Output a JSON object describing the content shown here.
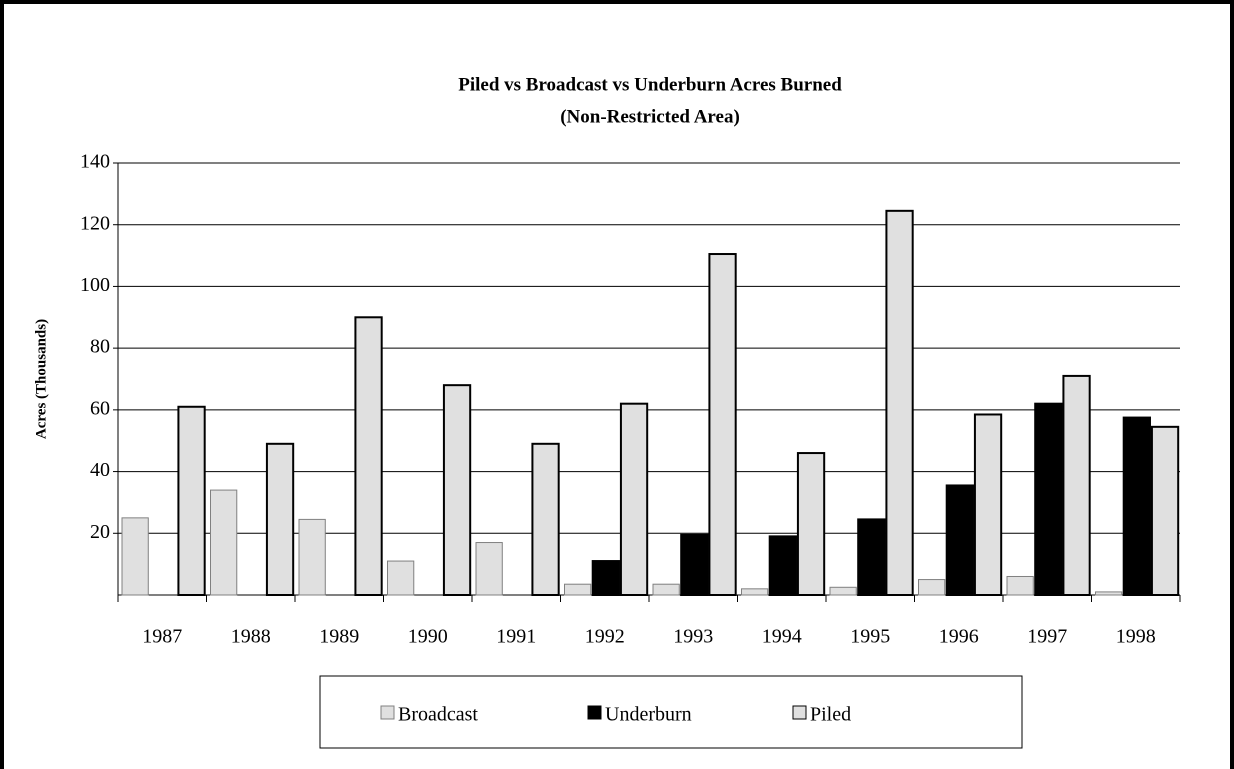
{
  "chart_data": {
    "type": "bar",
    "title": "Piled vs Broadcast vs Underburn Acres Burned",
    "subtitle": "(Non-Restricted Area)",
    "y_label": "Acres (Thousands)",
    "categories": [
      "1987",
      "1988",
      "1989",
      "1990",
      "1991",
      "1992",
      "1993",
      "1994",
      "1995",
      "1996",
      "1997",
      "1998"
    ],
    "series": [
      {
        "name": "Broadcast",
        "color": "#e0e0e0",
        "values": [
          25,
          34,
          24.5,
          11,
          17,
          3.5,
          3.5,
          2,
          2.5,
          5,
          6,
          1
        ]
      },
      {
        "name": "Underburn",
        "color": "#000000",
        "values": [
          0,
          0,
          0,
          0,
          0,
          11,
          19.5,
          19,
          24.5,
          35.5,
          62,
          57.5
        ]
      },
      {
        "name": "Piled",
        "color": "#e0e0e0",
        "values": [
          61,
          49,
          90,
          68,
          49,
          62,
          110.5,
          46,
          124.5,
          58.5,
          71,
          54.5
        ]
      }
    ],
    "ylim": [
      0,
      140
    ],
    "yticks": [
      20,
      40,
      60,
      80,
      100,
      120,
      140
    ],
    "grid": true,
    "legend": "bottom"
  }
}
